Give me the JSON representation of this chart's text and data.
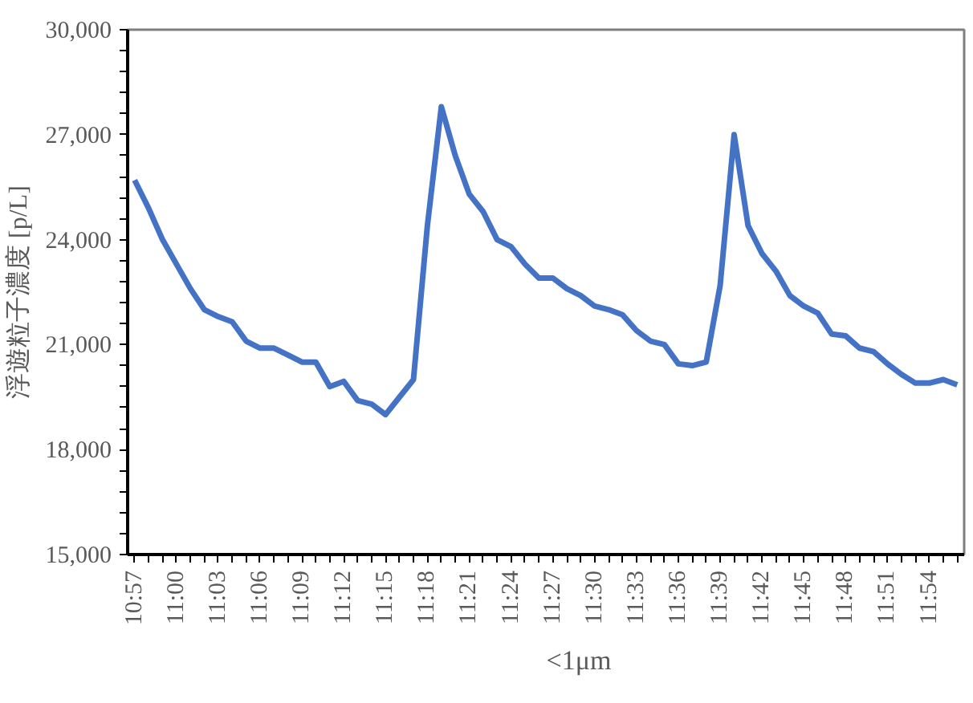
{
  "chart_data": {
    "type": "line",
    "ylabel": "浮遊粒子濃度 [p/L]",
    "categories": [
      "10:57",
      null,
      null,
      "11:00",
      null,
      null,
      "11:03",
      null,
      null,
      "11:06",
      null,
      null,
      "11:09",
      null,
      null,
      "11:12",
      null,
      null,
      "11:15",
      null,
      null,
      "11:18",
      null,
      null,
      "11:21",
      null,
      null,
      "11:24",
      null,
      null,
      "11:27",
      null,
      null,
      "11:30",
      null,
      null,
      "11:33",
      null,
      null,
      "11:36",
      null,
      null,
      "11:39",
      null,
      null,
      "11:42",
      null,
      null,
      "11:45",
      null,
      null,
      "11:48",
      null,
      null,
      "11:51",
      null,
      null,
      "11:54",
      null,
      null
    ],
    "series": [
      {
        "name": "<1μm",
        "color": "#4472c4",
        "values": [
          25700,
          24900,
          24000,
          23300,
          22600,
          22000,
          21800,
          21650,
          21100,
          20900,
          20900,
          20700,
          20500,
          20500,
          19800,
          19950,
          19400,
          19300,
          19000,
          19500,
          20000,
          24400,
          27800,
          26400,
          25300,
          24800,
          24000,
          23800,
          23300,
          22900,
          22900,
          22600,
          22400,
          22100,
          22000,
          21850,
          21400,
          21100,
          21000,
          20450,
          20400,
          20500,
          22700,
          27000,
          24400,
          23600,
          23100,
          22400,
          22100,
          21900,
          21300,
          21250,
          20900,
          20800,
          20450,
          20150,
          19900,
          19900,
          20000,
          19850
        ]
      }
    ],
    "ylim": [
      15000,
      30000
    ],
    "yticks": [
      {
        "value": 15000,
        "label": "15,000"
      },
      {
        "value": 18000,
        "label": "18,000"
      },
      {
        "value": 21000,
        "label": "21,000"
      },
      {
        "value": 24000,
        "label": "24,000"
      },
      {
        "value": 27000,
        "label": "27,000"
      },
      {
        "value": 30000,
        "label": "30,000"
      }
    ],
    "grid": false,
    "legend": "bottom",
    "marker": "none",
    "line_style": "solid"
  }
}
